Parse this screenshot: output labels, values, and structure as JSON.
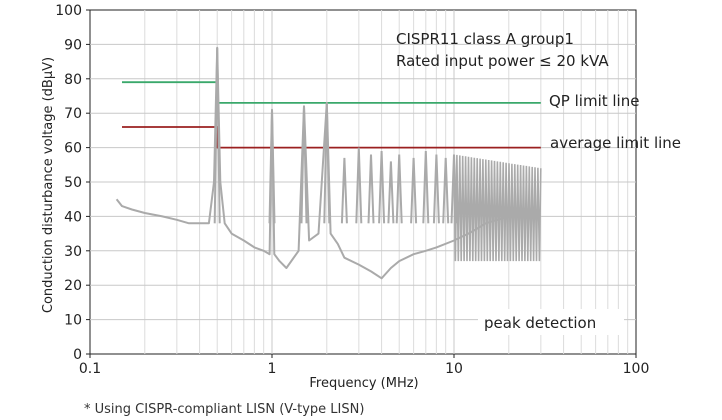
{
  "chart_data": {
    "type": "line",
    "xlabel": "Frequency (MHz)",
    "ylabel": "Conduction disturbance voltage (dBµV)",
    "xscale": "log",
    "xlim": [
      0.1,
      100
    ],
    "ylim": [
      0,
      100
    ],
    "x_ticks": [
      0.1,
      1,
      10,
      100
    ],
    "x_tick_labels": [
      "0.1",
      "1",
      "10",
      "100"
    ],
    "y_ticks": [
      0,
      10,
      20,
      30,
      40,
      50,
      60,
      70,
      80,
      90,
      100
    ],
    "y_tick_labels": [
      "0",
      "10",
      "20",
      "30",
      "40",
      "50",
      "60",
      "70",
      "80",
      "90",
      "100"
    ],
    "grid": true,
    "series": [
      {
        "name": "QP limit line",
        "color": "#3aa86b",
        "x": [
          0.15,
          0.5,
          0.5,
          30
        ],
        "y": [
          79,
          79,
          73,
          73
        ]
      },
      {
        "name": "average limit line",
        "color": "#9b2020",
        "x": [
          0.15,
          0.5,
          0.5,
          30
        ],
        "y": [
          66,
          66,
          60,
          60
        ]
      },
      {
        "name": "",
        "color": "#aaaaaa",
        "x": [
          0.14,
          0.15,
          0.17,
          0.2,
          0.25,
          0.3,
          0.35,
          0.4,
          0.45,
          0.48,
          0.5,
          0.52,
          0.55,
          0.6,
          0.7,
          0.8,
          0.9,
          0.97,
          1.0,
          1.03,
          1.1,
          1.2,
          1.4,
          1.5,
          1.6,
          1.8,
          2.0,
          2.1,
          2.3,
          2.5,
          3.0,
          3.5,
          4.0,
          4.5,
          5.0,
          6.0,
          7.0,
          8.0,
          10.0,
          12.0,
          15.0,
          20.0,
          25.0,
          30.0
        ],
        "y": [
          45,
          43,
          42,
          41,
          40,
          39,
          38,
          38,
          38,
          50,
          89,
          50,
          38,
          35,
          33,
          31,
          30,
          29,
          71,
          29,
          27,
          25,
          30,
          72,
          33,
          35,
          73,
          35,
          32,
          28,
          26,
          24,
          22,
          25,
          27,
          29,
          30,
          31,
          33,
          35,
          38,
          40,
          40,
          40
        ]
      }
    ],
    "peak_markers": [
      {
        "x": 0.5,
        "y": 89
      },
      {
        "x": 1.0,
        "y": 71
      },
      {
        "x": 1.5,
        "y": 72
      },
      {
        "x": 2.0,
        "y": 73
      },
      {
        "x": 2.5,
        "y": 57
      },
      {
        "x": 3.0,
        "y": 60
      },
      {
        "x": 3.5,
        "y": 58
      },
      {
        "x": 4.0,
        "y": 59
      },
      {
        "x": 4.5,
        "y": 56
      },
      {
        "x": 5.0,
        "y": 58
      },
      {
        "x": 6.0,
        "y": 57
      },
      {
        "x": 7.0,
        "y": 59
      },
      {
        "x": 8.0,
        "y": 58
      },
      {
        "x": 9.0,
        "y": 57
      },
      {
        "x": 10.0,
        "y": 58
      }
    ],
    "annotations": {
      "title_line1": "CISPR11 class A group1",
      "title_line2": "Rated input power ≤ 20 kVA",
      "qp_label": "QP limit line",
      "avg_label": "average limit line",
      "peak_label": "peak detection",
      "footnote": "* Using CISPR-compliant LISN (V-type LISN)"
    }
  }
}
